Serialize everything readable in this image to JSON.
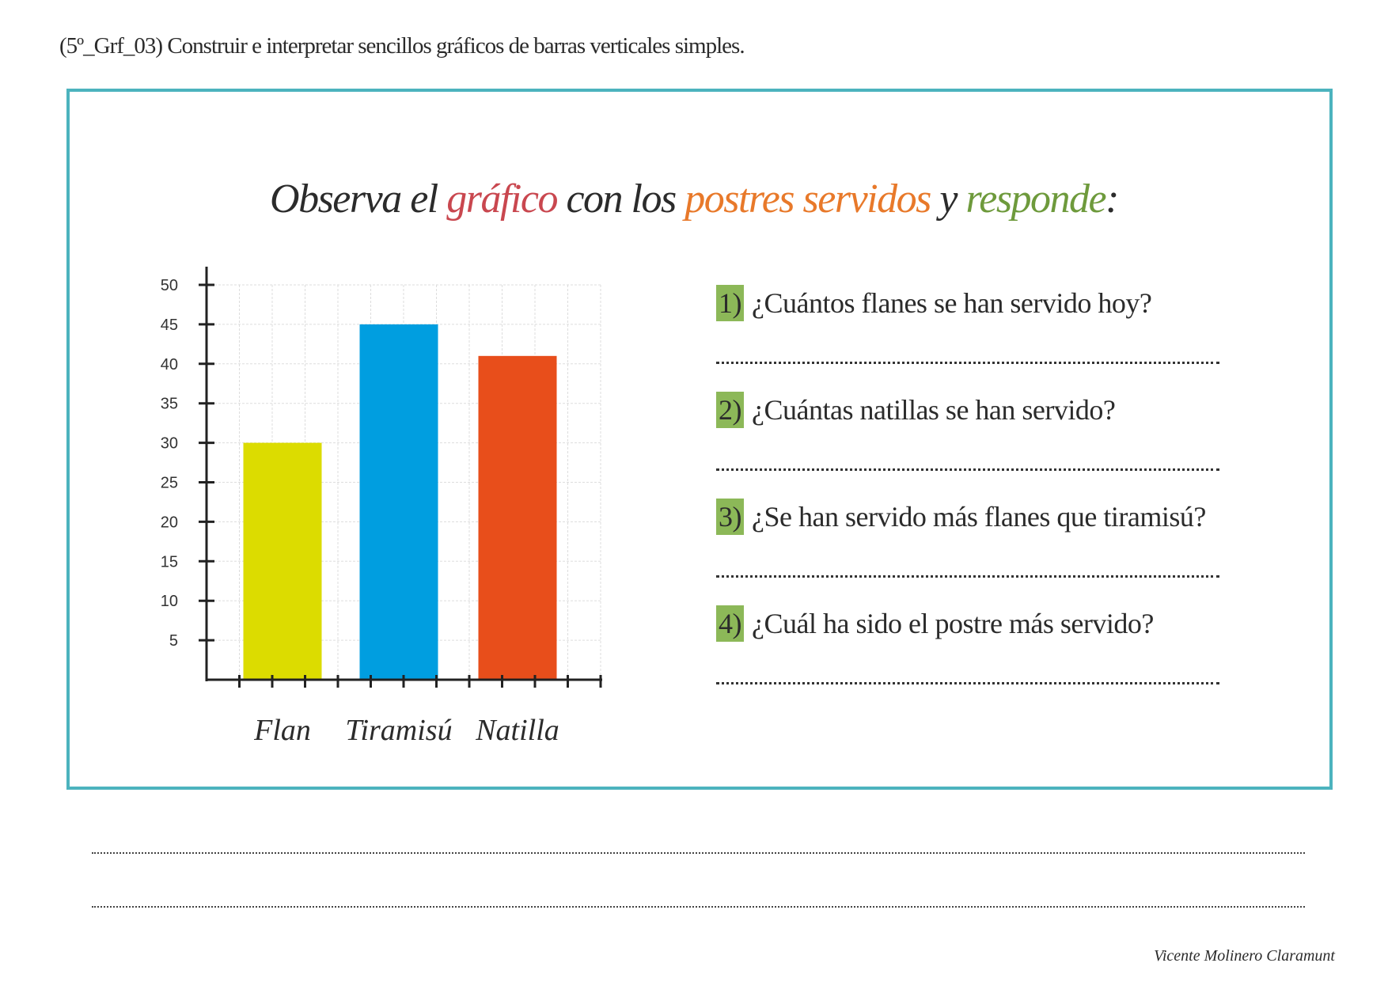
{
  "header": "(5º_Grf_03) Construir e interpretar sencillos gráficos de barras verticales simples.",
  "title": {
    "parts": [
      {
        "text": "Observa el ",
        "color": "#2b2b2b"
      },
      {
        "text": "gráfico",
        "color": "#c9474f"
      },
      {
        "text": " con los ",
        "color": "#2b2b2b"
      },
      {
        "text": "postres servidos",
        "color": "#e8792a"
      },
      {
        "text": " y ",
        "color": "#2b2b2b"
      },
      {
        "text": "responde",
        "color": "#6e9a3c"
      },
      {
        "text": ":",
        "color": "#2b2b2b"
      }
    ]
  },
  "chart_data": {
    "type": "bar",
    "categories": [
      "Flan",
      "Tiramisú",
      "Natilla"
    ],
    "values": [
      30,
      45,
      41
    ],
    "colors": [
      "#dcdc00",
      "#009ee0",
      "#e84e1b"
    ],
    "yticks": [
      5,
      10,
      15,
      20,
      25,
      30,
      35,
      40,
      45,
      50
    ],
    "ylim": [
      0,
      50
    ],
    "grid": true,
    "title": "",
    "xlabel": "",
    "ylabel": ""
  },
  "questions": [
    {
      "num": "1)",
      "text": "¿Cuántos flanes se han servido hoy?"
    },
    {
      "num": "2)",
      "text": "¿Cuántas natillas se han servido?"
    },
    {
      "num": "3)",
      "text": "¿Se han servido más flanes que tiramisú?"
    },
    {
      "num": "4)",
      "text": "¿Cuál ha sido el postre más servido?"
    }
  ],
  "badge_color": "#8cb858",
  "border_color": "#4cb3be",
  "signature": "Vicente Molinero Claramunt"
}
